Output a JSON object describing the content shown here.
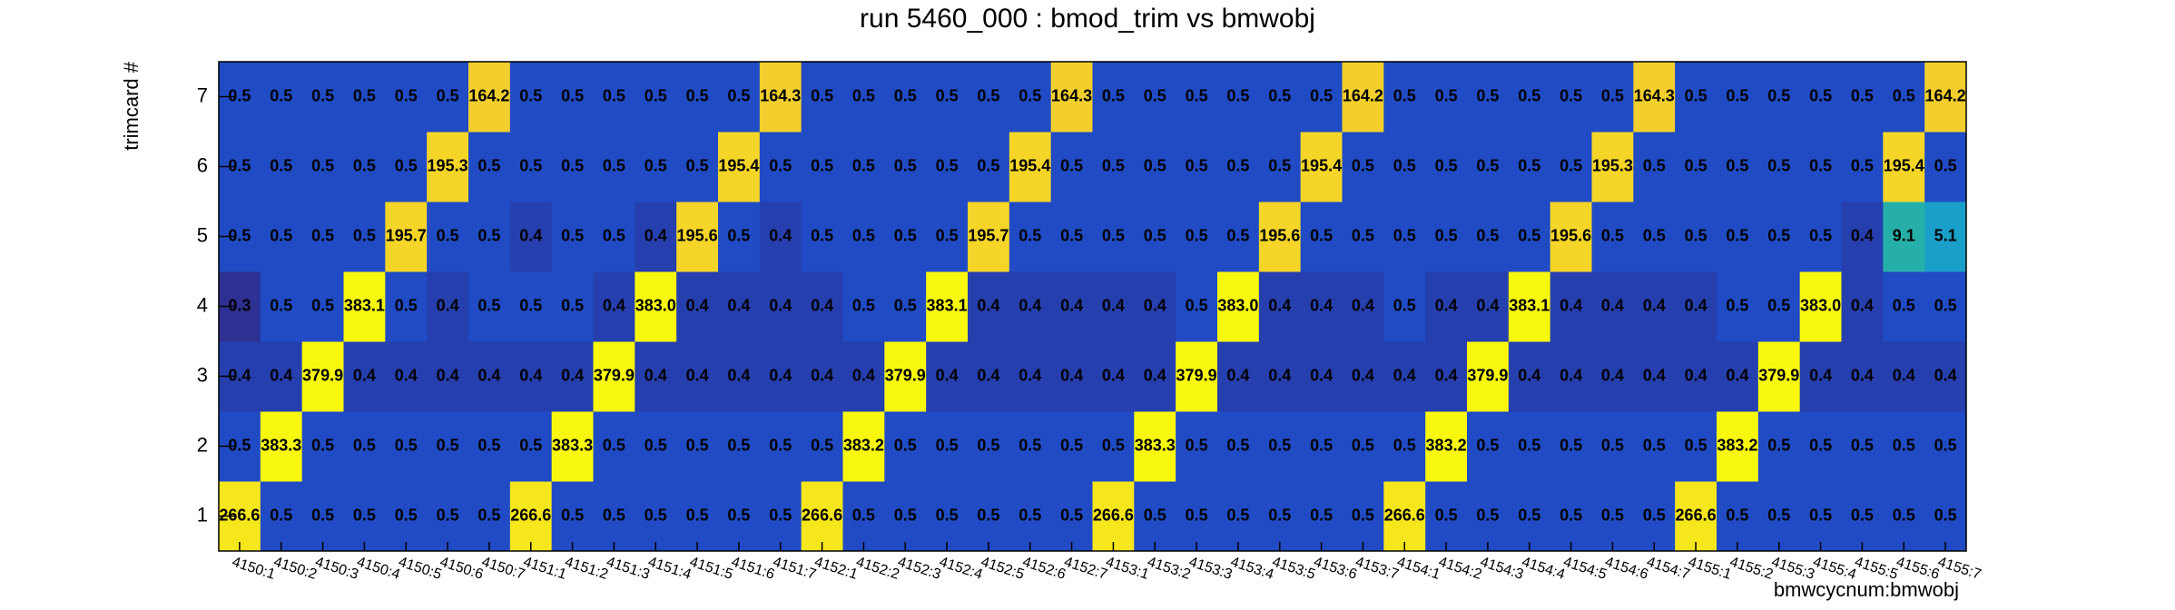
{
  "chart_data": {
    "type": "heatmap",
    "title": "run 5460_000 : bmod_trim vs bmwobj",
    "x_label": "bmwcycnum:bmwobj",
    "y_label": "trimcard #",
    "categories": [
      "4150:1",
      "4150:2",
      "4150:3",
      "4150:4",
      "4150:5",
      "4150:6",
      "4150:7",
      "4151:1",
      "4151:2",
      "4151:3",
      "4151:4",
      "4151:5",
      "4151:6",
      "4151:7",
      "4152:1",
      "4152:2",
      "4152:3",
      "4152:4",
      "4152:5",
      "4152:6",
      "4152:7",
      "4153:1",
      "4153:2",
      "4153:3",
      "4153:4",
      "4153:5",
      "4153:6",
      "4153:7",
      "4154:1",
      "4154:2",
      "4154:3",
      "4154:4",
      "4154:5",
      "4154:6",
      "4154:7",
      "4155:1",
      "4155:2",
      "4155:3",
      "4155:4",
      "4155:5",
      "4155:6",
      "4155:7"
    ],
    "y_categories": [
      1,
      2,
      3,
      4,
      5,
      6,
      7
    ],
    "values": [
      [
        266.6,
        0.5,
        0.5,
        0.5,
        0.5,
        0.5,
        0.5,
        266.6,
        0.5,
        0.5,
        0.5,
        0.5,
        0.5,
        0.5,
        266.6,
        0.5,
        0.5,
        0.5,
        0.5,
        0.5,
        0.5,
        266.6,
        0.5,
        0.5,
        0.5,
        0.5,
        0.5,
        0.5,
        266.6,
        0.5,
        0.5,
        0.5,
        0.5,
        0.5,
        0.5,
        266.6,
        0.5,
        0.5,
        0.5,
        0.5,
        0.5,
        0.5
      ],
      [
        0.5,
        383.3,
        0.5,
        0.5,
        0.5,
        0.5,
        0.5,
        0.5,
        383.3,
        0.5,
        0.5,
        0.5,
        0.5,
        0.5,
        0.5,
        383.2,
        0.5,
        0.5,
        0.5,
        0.5,
        0.5,
        0.5,
        383.3,
        0.5,
        0.5,
        0.5,
        0.5,
        0.5,
        0.5,
        383.2,
        0.5,
        0.5,
        0.5,
        0.5,
        0.5,
        0.5,
        383.2,
        0.5,
        0.5,
        0.5,
        0.5,
        0.5
      ],
      [
        0.4,
        0.4,
        379.9,
        0.4,
        0.4,
        0.4,
        0.4,
        0.4,
        0.4,
        379.9,
        0.4,
        0.4,
        0.4,
        0.4,
        0.4,
        0.4,
        379.9,
        0.4,
        0.4,
        0.4,
        0.4,
        0.4,
        0.4,
        379.9,
        0.4,
        0.4,
        0.4,
        0.4,
        0.4,
        0.4,
        379.9,
        0.4,
        0.4,
        0.4,
        0.4,
        0.4,
        0.4,
        379.9,
        0.4,
        0.4,
        0.4,
        0.4
      ],
      [
        0.3,
        0.5,
        0.5,
        383.1,
        0.5,
        0.4,
        0.5,
        0.5,
        0.5,
        0.4,
        383,
        0.4,
        0.4,
        0.4,
        0.4,
        0.5,
        0.5,
        383.1,
        0.4,
        0.4,
        0.4,
        0.4,
        0.4,
        0.5,
        383,
        0.4,
        0.4,
        0.4,
        0.5,
        0.4,
        0.4,
        383.1,
        0.4,
        0.4,
        0.4,
        0.4,
        0.5,
        0.5,
        383,
        0.4,
        0.5,
        0.5
      ],
      [
        0.5,
        0.5,
        0.5,
        0.5,
        195.7,
        0.5,
        0.5,
        0.4,
        0.5,
        0.5,
        0.4,
        195.6,
        0.5,
        0.4,
        0.5,
        0.5,
        0.5,
        0.5,
        195.7,
        0.5,
        0.5,
        0.5,
        0.5,
        0.5,
        0.5,
        195.6,
        0.5,
        0.5,
        0.5,
        0.5,
        0.5,
        0.5,
        195.6,
        0.5,
        0.5,
        0.5,
        0.5,
        0.5,
        0.5,
        0.4,
        9.1,
        5.1
      ],
      [
        0.5,
        0.5,
        0.5,
        0.5,
        0.5,
        195.3,
        0.5,
        0.5,
        0.5,
        0.5,
        0.5,
        0.5,
        195.4,
        0.5,
        0.5,
        0.5,
        0.5,
        0.5,
        0.5,
        195.4,
        0.5,
        0.5,
        0.5,
        0.5,
        0.5,
        0.5,
        195.4,
        0.5,
        0.5,
        0.5,
        0.5,
        0.5,
        0.5,
        195.3,
        0.5,
        0.5,
        0.5,
        0.5,
        0.5,
        0.5,
        195.4,
        0.5
      ],
      [
        0.5,
        0.5,
        0.5,
        0.5,
        0.5,
        0.5,
        164.2,
        0.5,
        0.5,
        0.5,
        0.5,
        0.5,
        0.5,
        164.3,
        0.5,
        0.5,
        0.5,
        0.5,
        0.5,
        0.5,
        164.3,
        0.5,
        0.5,
        0.5,
        0.5,
        0.5,
        0.5,
        164.2,
        0.5,
        0.5,
        0.5,
        0.5,
        0.5,
        0.5,
        164.3,
        0.5,
        0.5,
        0.5,
        0.5,
        0.5,
        0.5,
        164.2
      ]
    ],
    "value_labels": [
      [
        "266.6",
        "0.5",
        "0.5",
        "0.5",
        "0.5",
        "0.5",
        "0.5",
        "266.6",
        "0.5",
        "0.5",
        "0.5",
        "0.5",
        "0.5",
        "0.5",
        "266.6",
        "0.5",
        "0.5",
        "0.5",
        "0.5",
        "0.5",
        "0.5",
        "266.6",
        "0.5",
        "0.5",
        "0.5",
        "0.5",
        "0.5",
        "0.5",
        "266.6",
        "0.5",
        "0.5",
        "0.5",
        "0.5",
        "0.5",
        "0.5",
        "266.6",
        "0.5",
        "0.5",
        "0.5",
        "0.5",
        "0.5",
        "0.5"
      ],
      [
        "0.5",
        "383.3",
        "0.5",
        "0.5",
        "0.5",
        "0.5",
        "0.5",
        "0.5",
        "383.3",
        "0.5",
        "0.5",
        "0.5",
        "0.5",
        "0.5",
        "0.5",
        "383.2",
        "0.5",
        "0.5",
        "0.5",
        "0.5",
        "0.5",
        "0.5",
        "383.3",
        "0.5",
        "0.5",
        "0.5",
        "0.5",
        "0.5",
        "0.5",
        "383.2",
        "0.5",
        "0.5",
        "0.5",
        "0.5",
        "0.5",
        "0.5",
        "383.2",
        "0.5",
        "0.5",
        "0.5",
        "0.5",
        "0.5"
      ],
      [
        "0.4",
        "0.4",
        "379.9",
        "0.4",
        "0.4",
        "0.4",
        "0.4",
        "0.4",
        "0.4",
        "379.9",
        "0.4",
        "0.4",
        "0.4",
        "0.4",
        "0.4",
        "0.4",
        "379.9",
        "0.4",
        "0.4",
        "0.4",
        "0.4",
        "0.4",
        "0.4",
        "379.9",
        "0.4",
        "0.4",
        "0.4",
        "0.4",
        "0.4",
        "0.4",
        "379.9",
        "0.4",
        "0.4",
        "0.4",
        "0.4",
        "0.4",
        "0.4",
        "379.9",
        "0.4",
        "0.4",
        "0.4",
        "0.4"
      ],
      [
        "0.3",
        "0.5",
        "0.5",
        "383.1",
        "0.5",
        "0.4",
        "0.5",
        "0.5",
        "0.5",
        "0.4",
        "383.0",
        "0.4",
        "0.4",
        "0.4",
        "0.4",
        "0.5",
        "0.5",
        "383.1",
        "0.4",
        "0.4",
        "0.4",
        "0.4",
        "0.4",
        "0.5",
        "383.0",
        "0.4",
        "0.4",
        "0.4",
        "0.5",
        "0.4",
        "0.4",
        "383.1",
        "0.4",
        "0.4",
        "0.4",
        "0.4",
        "0.5",
        "0.5",
        "383.0",
        "0.4",
        "0.5",
        "0.5"
      ],
      [
        "0.5",
        "0.5",
        "0.5",
        "0.5",
        "195.7",
        "0.5",
        "0.5",
        "0.4",
        "0.5",
        "0.5",
        "0.4",
        "195.6",
        "0.5",
        "0.4",
        "0.5",
        "0.5",
        "0.5",
        "0.5",
        "195.7",
        "0.5",
        "0.5",
        "0.5",
        "0.5",
        "0.5",
        "0.5",
        "195.6",
        "0.5",
        "0.5",
        "0.5",
        "0.5",
        "0.5",
        "0.5",
        "195.6",
        "0.5",
        "0.5",
        "0.5",
        "0.5",
        "0.5",
        "0.5",
        "0.4",
        "9.1",
        "5.1"
      ],
      [
        "0.5",
        "0.5",
        "0.5",
        "0.5",
        "0.5",
        "195.3",
        "0.5",
        "0.5",
        "0.5",
        "0.5",
        "0.5",
        "0.5",
        "195.4",
        "0.5",
        "0.5",
        "0.5",
        "0.5",
        "0.5",
        "0.5",
        "195.4",
        "0.5",
        "0.5",
        "0.5",
        "0.5",
        "0.5",
        "0.5",
        "195.4",
        "0.5",
        "0.5",
        "0.5",
        "0.5",
        "0.5",
        "0.5",
        "195.3",
        "0.5",
        "0.5",
        "0.5",
        "0.5",
        "0.5",
        "0.5",
        "195.4",
        "0.5"
      ],
      [
        "0.5",
        "0.5",
        "0.5",
        "0.5",
        "0.5",
        "0.5",
        "164.2",
        "0.5",
        "0.5",
        "0.5",
        "0.5",
        "0.5",
        "0.5",
        "164.3",
        "0.5",
        "0.5",
        "0.5",
        "0.5",
        "0.5",
        "0.5",
        "164.3",
        "0.5",
        "0.5",
        "0.5",
        "0.5",
        "0.5",
        "0.5",
        "164.2",
        "0.5",
        "0.5",
        "0.5",
        "0.5",
        "0.5",
        "0.5",
        "164.3",
        "0.5",
        "0.5",
        "0.5",
        "0.5",
        "0.5",
        "0.5",
        "164.2"
      ]
    ],
    "palette": [
      "#2e3192",
      "#1a55d8",
      "#1566d0",
      "#1a88cc",
      "#1aa0c8",
      "#2ab49e",
      "#6cbc70",
      "#b0bc48",
      "#e8ba38",
      "#f5d42a",
      "#f8f80e"
    ],
    "log_color": true
  }
}
